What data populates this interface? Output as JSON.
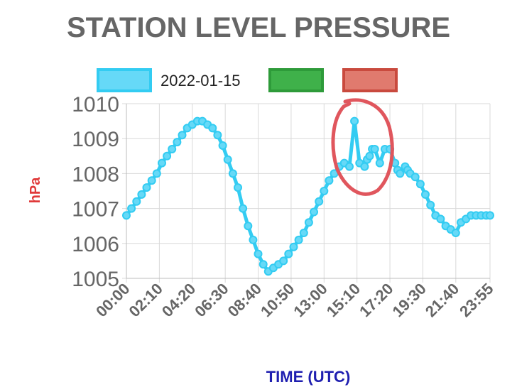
{
  "colors": {
    "series_line": "#33ccf2",
    "series_fill": "#66d9f7",
    "green": "#2e9b3a",
    "green_fill": "#3fb14a",
    "red": "#c94a3e",
    "red_fill": "#e07a6e",
    "annotation": "#e0565d",
    "ylabel": "#e03a3a",
    "xlabel": "#1f1fb0",
    "grid": "#d9d9d9",
    "text": "#666666"
  },
  "chart_data": {
    "type": "line",
    "title": "STATION LEVEL PRESSURE",
    "xlabel": "TIME (UTC)",
    "ylabel": "hPa",
    "ylim": [
      1005,
      1010
    ],
    "yticks": [
      "1010",
      "1009",
      "1008",
      "1007",
      "1006",
      "1005"
    ],
    "xticks": [
      "00:00",
      "02:10",
      "04:20",
      "06:30",
      "08:40",
      "10:50",
      "13:00",
      "15:10",
      "17:20",
      "19:30",
      "21:40",
      "23:55"
    ],
    "grid": true,
    "legend_position": "top",
    "legend": [
      "2022-01-15",
      "",
      ""
    ],
    "annotation": "red hand-drawn circle around spike near 16:00",
    "series": [
      {
        "name": "2022-01-15",
        "x": [
          "00:00",
          "00:20",
          "00:40",
          "01:00",
          "01:20",
          "01:40",
          "02:00",
          "02:20",
          "02:40",
          "03:00",
          "03:20",
          "03:40",
          "04:00",
          "04:20",
          "04:40",
          "05:00",
          "05:20",
          "05:40",
          "06:00",
          "06:20",
          "06:40",
          "07:00",
          "07:20",
          "07:40",
          "08:00",
          "08:20",
          "08:40",
          "09:00",
          "09:20",
          "09:40",
          "10:00",
          "10:20",
          "10:40",
          "11:00",
          "11:20",
          "11:40",
          "12:00",
          "12:20",
          "12:40",
          "13:00",
          "13:20",
          "13:40",
          "14:00",
          "14:20",
          "14:40",
          "15:00",
          "15:20",
          "15:40",
          "15:50",
          "16:00",
          "16:10",
          "16:20",
          "16:40",
          "17:00",
          "17:20",
          "17:40",
          "17:50",
          "18:00",
          "18:20",
          "18:30",
          "18:40",
          "19:00",
          "19:20",
          "19:40",
          "20:00",
          "20:20",
          "20:40",
          "21:00",
          "21:20",
          "21:40",
          "22:00",
          "22:20",
          "22:40",
          "23:00",
          "23:20",
          "23:40",
          "23:55"
        ],
        "values": [
          1006.8,
          1007.0,
          1007.2,
          1007.4,
          1007.6,
          1007.8,
          1008.0,
          1008.3,
          1008.5,
          1008.7,
          1008.9,
          1009.1,
          1009.3,
          1009.4,
          1009.5,
          1009.5,
          1009.4,
          1009.3,
          1009.1,
          1008.8,
          1008.4,
          1008.0,
          1007.6,
          1007.0,
          1006.5,
          1006.1,
          1005.7,
          1005.4,
          1005.2,
          1005.3,
          1005.4,
          1005.5,
          1005.7,
          1005.9,
          1006.1,
          1006.3,
          1006.6,
          1006.9,
          1007.2,
          1007.5,
          1007.8,
          1008.0,
          1008.2,
          1008.3,
          1008.2,
          1009.5,
          1008.3,
          1008.2,
          1008.4,
          1008.5,
          1008.7,
          1008.7,
          1008.3,
          1008.7,
          1008.7,
          1008.3,
          1008.1,
          1008.0,
          1008.2,
          1008.1,
          1008.0,
          1007.9,
          1007.7,
          1007.4,
          1007.1,
          1006.8,
          1006.7,
          1006.5,
          1006.4,
          1006.3,
          1006.6,
          1006.7,
          1006.8,
          1006.8,
          1006.8,
          1006.8,
          1006.8
        ]
      }
    ]
  }
}
